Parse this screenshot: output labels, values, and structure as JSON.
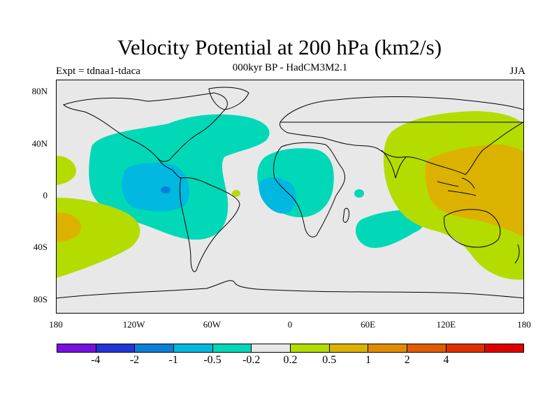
{
  "title": "Velocity Potential at 200 hPa (km2/s)",
  "subtitle": "000kyr BP - HadCM3M2.1",
  "left_label": "Expt = tdnaa1-tdaca",
  "right_label": "JJA",
  "y_ticks": [
    "80N",
    "40N",
    "0",
    "40S",
    "80S"
  ],
  "x_ticks": [
    "180",
    "120W",
    "60W",
    "0",
    "60E",
    "120E",
    "180"
  ],
  "colorbar": {
    "colors": [
      "#7a10e0",
      "#2235d8",
      "#0a7fd6",
      "#00b8e0",
      "#00d8b8",
      "#e8e8e8",
      "#b4dc00",
      "#dcb200",
      "#e08c00",
      "#e05c00",
      "#e03000",
      "#e00000"
    ],
    "labels": [
      "-4",
      "-2",
      "-1",
      "-0.5",
      "-0.2",
      "0.2",
      "0.5",
      "1",
      "2",
      "4"
    ]
  }
}
